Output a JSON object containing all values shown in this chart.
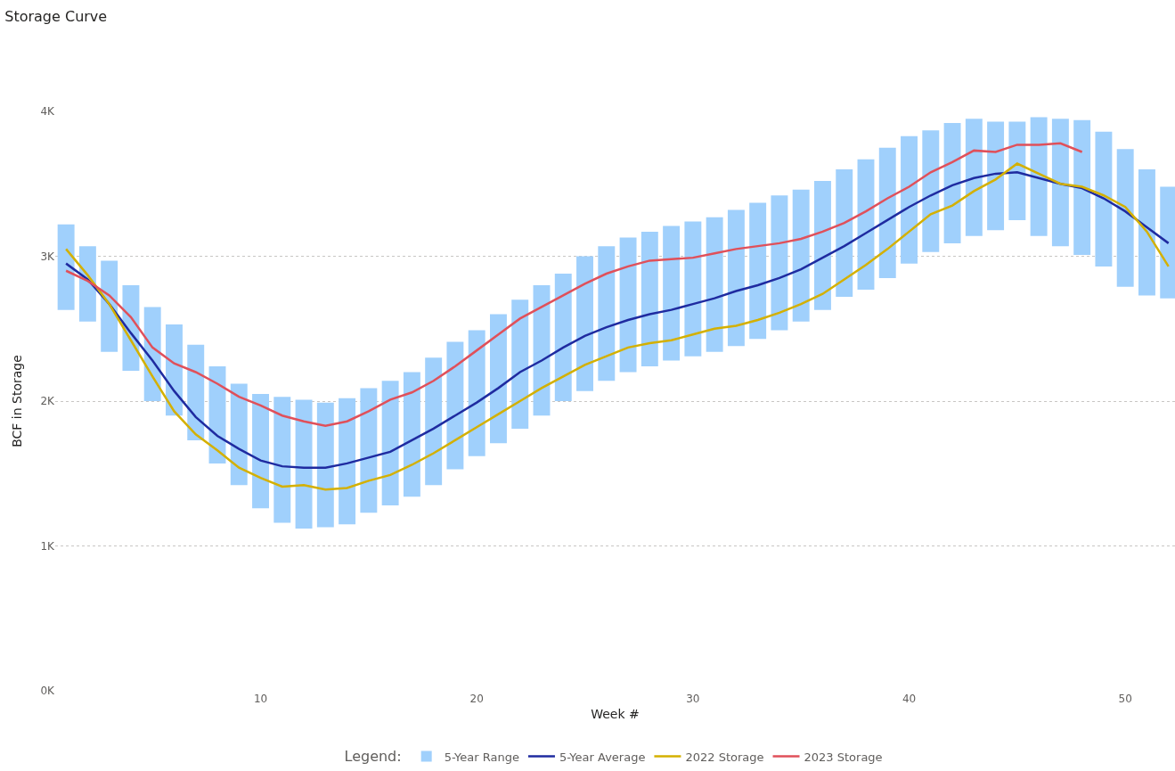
{
  "chart_data": {
    "type": "line",
    "title": "Storage Curve",
    "xlabel": "Week #",
    "ylabel": "BCF in Storage",
    "legend_title": "Legend:",
    "x": [
      1,
      2,
      3,
      4,
      5,
      6,
      7,
      8,
      9,
      10,
      11,
      12,
      13,
      14,
      15,
      16,
      17,
      18,
      19,
      20,
      21,
      22,
      23,
      24,
      25,
      26,
      27,
      28,
      29,
      30,
      31,
      32,
      33,
      34,
      35,
      36,
      37,
      38,
      39,
      40,
      41,
      42,
      43,
      44,
      45,
      46,
      47,
      48,
      49,
      50,
      51,
      52
    ],
    "xlim": [
      0.5,
      52.3
    ],
    "xticks": [
      10,
      20,
      30,
      40,
      50
    ],
    "ylim": [
      0,
      4000
    ],
    "yticks": [
      {
        "value": 0,
        "label": "0K"
      },
      {
        "value": 1000,
        "label": "1K"
      },
      {
        "value": 2000,
        "label": "2K"
      },
      {
        "value": 3000,
        "label": "3K"
      },
      {
        "value": 4000,
        "label": "4K"
      }
    ],
    "grid": "y",
    "legend": "bottom",
    "series": [
      {
        "name": "5-Year Range",
        "type": "bar",
        "color": "#a0d0fc",
        "base": [
          2630,
          2550,
          2340,
          2210,
          2000,
          1900,
          1730,
          1570,
          1420,
          1260,
          1160,
          1120,
          1130,
          1150,
          1230,
          1280,
          1340,
          1420,
          1530,
          1620,
          1710,
          1810,
          1900,
          2000,
          2070,
          2140,
          2200,
          2240,
          2280,
          2310,
          2340,
          2380,
          2430,
          2490,
          2550,
          2630,
          2720,
          2770,
          2850,
          2950,
          3030,
          3090,
          3140,
          3180,
          3250,
          3140,
          3070,
          3010,
          2930,
          2790,
          2730,
          2710
        ],
        "values": [
          590,
          520,
          630,
          590,
          650,
          630,
          660,
          670,
          700,
          790,
          870,
          890,
          860,
          870,
          860,
          860,
          860,
          880,
          880,
          870,
          890,
          890,
          900,
          880,
          930,
          930,
          930,
          930,
          930,
          930,
          930,
          940,
          940,
          930,
          910,
          890,
          880,
          900,
          900,
          880,
          840,
          830,
          810,
          750,
          680,
          820,
          880,
          930,
          930,
          950,
          870,
          770
        ]
      },
      {
        "name": "5-Year Average",
        "color": "#1f2ba0",
        "values": [
          2950,
          2840,
          2670,
          2470,
          2280,
          2070,
          1890,
          1760,
          1670,
          1590,
          1550,
          1540,
          1540,
          1570,
          1610,
          1650,
          1730,
          1810,
          1900,
          1990,
          2090,
          2200,
          2280,
          2370,
          2450,
          2510,
          2560,
          2600,
          2630,
          2670,
          2710,
          2760,
          2800,
          2850,
          2910,
          2990,
          3070,
          3160,
          3250,
          3340,
          3420,
          3490,
          3540,
          3570,
          3580,
          3540,
          3500,
          3470,
          3400,
          3310,
          3200,
          3090
        ]
      },
      {
        "name": "2022 Storage",
        "color": "#d4b000",
        "values": [
          3050,
          2870,
          2670,
          2420,
          2170,
          1930,
          1770,
          1660,
          1540,
          1470,
          1410,
          1420,
          1390,
          1400,
          1450,
          1490,
          1560,
          1640,
          1730,
          1820,
          1910,
          2000,
          2090,
          2170,
          2250,
          2310,
          2370,
          2400,
          2420,
          2460,
          2500,
          2520,
          2560,
          2610,
          2670,
          2740,
          2840,
          2940,
          3050,
          3170,
          3290,
          3350,
          3450,
          3530,
          3640,
          3570,
          3500,
          3480,
          3420,
          3340,
          3170,
          2930
        ]
      },
      {
        "name": "2023 Storage",
        "color": "#e0505a",
        "values": [
          2900,
          2830,
          2730,
          2580,
          2370,
          2260,
          2200,
          2120,
          2030,
          1970,
          1900,
          1860,
          1830,
          1860,
          1930,
          2010,
          2060,
          2140,
          2240,
          2350,
          2460,
          2570,
          2650,
          2730,
          2810,
          2880,
          2930,
          2970,
          2980,
          2990,
          3020,
          3050,
          3070,
          3090,
          3120,
          3170,
          3230,
          3310,
          3400,
          3480,
          3580,
          3650,
          3730,
          3720,
          3770,
          3770,
          3780,
          3720,
          null,
          null,
          null,
          null
        ]
      }
    ]
  }
}
